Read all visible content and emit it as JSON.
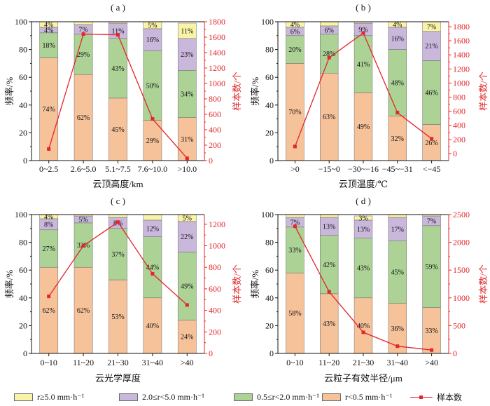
{
  "legend_placement": "bottom",
  "legend": [
    {
      "label": "r≥5.0 mm·h⁻¹",
      "color": "#faf3a7"
    },
    {
      "label": "2.0≤r<5.0 mm·h⁻¹",
      "color": "#c9b8dc"
    },
    {
      "label": "0.5≤r<2.0 mm·h⁻¹",
      "color": "#acd296"
    },
    {
      "label": "r<0.5 mm·h⁻¹",
      "color": "#f6c29a"
    },
    {
      "label": "样本数",
      "color": "#e3262a"
    }
  ],
  "chart_data": [
    {
      "type": "bar",
      "stacked": true,
      "grid": false,
      "title": "( a )",
      "xlabel": "云顶高度/km",
      "ylabel": "频率/%",
      "y2label": "样本数/个",
      "categories": [
        "0~2.5",
        "2.6~5.0",
        "5.1~7.5",
        "7.6~10.0",
        ">10.0"
      ],
      "ylim": [
        0,
        100
      ],
      "yticks": [
        0,
        20,
        40,
        60,
        80,
        100
      ],
      "y2lim": [
        0,
        1800
      ],
      "y2ticks": [
        0,
        200,
        400,
        600,
        800,
        1000,
        1200,
        1400,
        1600,
        1800
      ],
      "series": [
        {
          "name": "r<0.5 mm·h⁻¹",
          "color": "#f6c29a",
          "values": [
            74,
            62,
            45,
            29,
            31
          ],
          "labels": [
            "74%",
            "62%",
            "45%",
            "29%",
            "31%"
          ]
        },
        {
          "name": "0.5≤r<2.0 mm·h⁻¹",
          "color": "#acd296",
          "values": [
            18,
            29,
            43,
            50,
            34
          ],
          "labels": [
            "18%",
            "29%",
            "43%",
            "50%",
            "34%"
          ]
        },
        {
          "name": "2.0≤r<5.0 mm·h⁻¹",
          "color": "#c9b8dc",
          "values": [
            4,
            7,
            11,
            16,
            23
          ],
          "labels": [
            "4%",
            "7%",
            "11%",
            "16%",
            "23%"
          ]
        },
        {
          "name": "r≥5.0 mm·h⁻¹",
          "color": "#faf3a7",
          "values": [
            4,
            2,
            1,
            5,
            11
          ],
          "labels": [
            "4%",
            "",
            "",
            "5%",
            "11%"
          ]
        }
      ],
      "line_series": {
        "name": "样本数",
        "secondary_axis": true,
        "color": "#e3262a",
        "values": [
          150,
          1640,
          1630,
          540,
          30
        ]
      }
    },
    {
      "type": "bar",
      "stacked": true,
      "grid": false,
      "title": "( b )",
      "xlabel": "云顶温度/℃",
      "ylabel": "频率/%",
      "y2label": "样本数/个",
      "categories": [
        ">0",
        "−15~0",
        "−30~−16",
        "−45~−31",
        "<−45"
      ],
      "ylim": [
        0,
        100
      ],
      "yticks": [
        0,
        20,
        40,
        60,
        80,
        100
      ],
      "y2lim": [
        -100,
        1870
      ],
      "y2ticks": [
        0,
        200,
        400,
        600,
        800,
        1000,
        1200,
        1400,
        1600,
        1800
      ],
      "series": [
        {
          "name": "r<0.5 mm·h⁻¹",
          "color": "#f6c29a",
          "values": [
            70,
            63,
            49,
            32,
            26
          ],
          "labels": [
            "70%",
            "63%",
            "49%",
            "32%",
            "26%"
          ]
        },
        {
          "name": "0.5≤r<2.0 mm·h⁻¹",
          "color": "#acd296",
          "values": [
            20,
            28,
            41,
            48,
            46
          ],
          "labels": [
            "20%",
            "28%",
            "41%",
            "48%",
            "46%"
          ]
        },
        {
          "name": "2.0≤r<5.0 mm·h⁻¹",
          "color": "#c9b8dc",
          "values": [
            6,
            6,
            9,
            16,
            21
          ],
          "labels": [
            "6%",
            "6%",
            "9%",
            "16%",
            "21%"
          ]
        },
        {
          "name": "r≥5.0 mm·h⁻¹",
          "color": "#faf3a7",
          "values": [
            4,
            3,
            1,
            4,
            7
          ],
          "labels": [
            "4%",
            "",
            "",
            "4%",
            "7%"
          ]
        }
      ],
      "line_series": {
        "name": "样本数",
        "secondary_axis": true,
        "color": "#e3262a",
        "values": [
          100,
          1360,
          1710,
          580,
          210
        ]
      }
    },
    {
      "type": "bar",
      "stacked": true,
      "grid": false,
      "title": "( c )",
      "xlabel": "云光学厚度",
      "ylabel": "频率/%",
      "y2label": "样本数/个",
      "categories": [
        "0~10",
        "11~20",
        "21~30",
        "31~40",
        ">40"
      ],
      "ylim": [
        0,
        100
      ],
      "yticks": [
        0,
        20,
        40,
        60,
        80,
        100
      ],
      "y2lim": [
        0,
        1290
      ],
      "y2ticks": [
        0,
        200,
        400,
        600,
        800,
        1000,
        1200
      ],
      "series": [
        {
          "name": "r<0.5 mm·h⁻¹",
          "color": "#f6c29a",
          "values": [
            62,
            62,
            53,
            40,
            24
          ],
          "labels": [
            "62%",
            "62%",
            "53%",
            "40%",
            "24%"
          ]
        },
        {
          "name": "0.5≤r<2.0 mm·h⁻¹",
          "color": "#acd296",
          "values": [
            27,
            32,
            37,
            44,
            49
          ],
          "labels": [
            "27%",
            "32%",
            "37%",
            "44%",
            "49%"
          ]
        },
        {
          "name": "2.0≤r<5.0 mm·h⁻¹",
          "color": "#c9b8dc",
          "values": [
            8,
            5,
            8,
            12,
            22
          ],
          "labels": [
            "8%",
            "5%",
            "8%",
            "12%",
            "22%"
          ]
        },
        {
          "name": "r≥5.0 mm·h⁻¹",
          "color": "#faf3a7",
          "values": [
            4,
            1,
            2,
            4,
            5
          ],
          "labels": [
            "4%",
            "",
            "",
            "",
            "5%"
          ]
        }
      ],
      "line_series": {
        "name": "样本数",
        "secondary_axis": true,
        "color": "#e3262a",
        "values": [
          530,
          1000,
          1220,
          740,
          450
        ]
      }
    },
    {
      "type": "bar",
      "stacked": true,
      "grid": false,
      "title": "( d )",
      "xlabel": "云粒子有效半径/μm",
      "ylabel": "频率/%",
      "y2label": "样本数/个",
      "categories": [
        "0~10",
        "11~20",
        "21~30",
        "31~40",
        ">40"
      ],
      "ylim": [
        0,
        100
      ],
      "yticks": [
        0,
        20,
        40,
        60,
        80,
        100
      ],
      "y2lim": [
        0,
        2500
      ],
      "y2ticks": [
        0,
        500,
        1000,
        1500,
        2000,
        2500
      ],
      "series": [
        {
          "name": "r<0.5 mm·h⁻¹",
          "color": "#f6c29a",
          "values": [
            58,
            43,
            40,
            36,
            33
          ],
          "labels": [
            "58%",
            "43%",
            "40%",
            "36%",
            "33%"
          ]
        },
        {
          "name": "0.5≤r<2.0 mm·h⁻¹",
          "color": "#acd296",
          "values": [
            33,
            42,
            43,
            45,
            59
          ],
          "labels": [
            "33%",
            "42%",
            "43%",
            "45%",
            "59%"
          ]
        },
        {
          "name": "2.0≤r<5.0 mm·h⁻¹",
          "color": "#c9b8dc",
          "values": [
            7,
            13,
            13,
            17,
            7
          ],
          "labels": [
            "7%",
            "13%",
            "13%",
            "17%",
            "7%"
          ]
        },
        {
          "name": "r≥5.0 mm·h⁻¹",
          "color": "#faf3a7",
          "values": [
            2,
            2,
            3,
            2,
            1
          ],
          "labels": [
            "",
            "",
            "3%",
            "",
            ""
          ]
        }
      ],
      "line_series": {
        "name": "样本数",
        "secondary_axis": true,
        "color": "#e3262a",
        "values": [
          2290,
          1110,
          380,
          130,
          60
        ]
      }
    }
  ]
}
